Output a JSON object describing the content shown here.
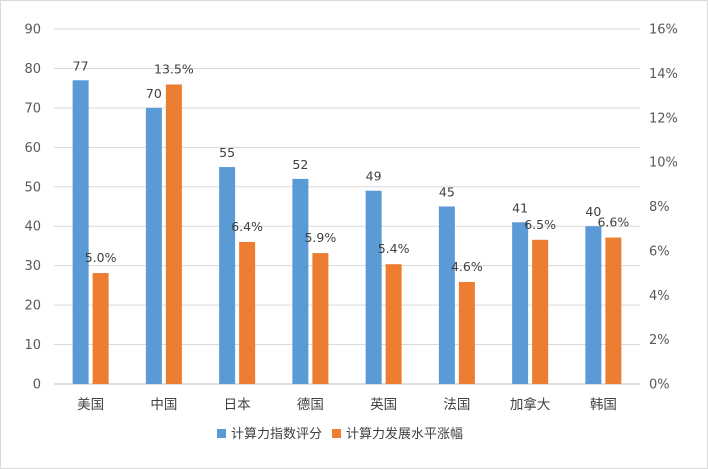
{
  "chart_data": {
    "type": "bar",
    "categories": [
      "美国",
      "中国",
      "日本",
      "德国",
      "英国",
      "法国",
      "加拿大",
      "韩国"
    ],
    "series": [
      {
        "name": "计算力指数评分",
        "axis": "left",
        "color": "#5b9bd5",
        "values": [
          77,
          70,
          55,
          52,
          49,
          45,
          41,
          40
        ],
        "labels": [
          "77",
          "70",
          "55",
          "52",
          "49",
          "45",
          "41",
          "40"
        ]
      },
      {
        "name": "计算力发展水平涨幅",
        "axis": "right",
        "color": "#ed7d31",
        "values": [
          5.0,
          13.5,
          6.4,
          5.9,
          5.4,
          4.6,
          6.5,
          6.6
        ],
        "labels": [
          "5.0%",
          "13.5%",
          "6.4%",
          "5.9%",
          "5.4%",
          "4.6%",
          "6.5%",
          "6.6%"
        ]
      }
    ],
    "y_left": {
      "ylim": [
        0,
        90
      ],
      "ticks": [
        "0",
        "10",
        "20",
        "30",
        "40",
        "50",
        "60",
        "70",
        "80",
        "90"
      ]
    },
    "y_right": {
      "ylim": [
        0,
        16
      ],
      "ticks": [
        "0%",
        "2%",
        "4%",
        "6%",
        "8%",
        "10%",
        "12%",
        "14%",
        "16%"
      ]
    },
    "grid": true,
    "legend_position": "bottom",
    "title": "",
    "xlabel": "",
    "ylabel": ""
  }
}
